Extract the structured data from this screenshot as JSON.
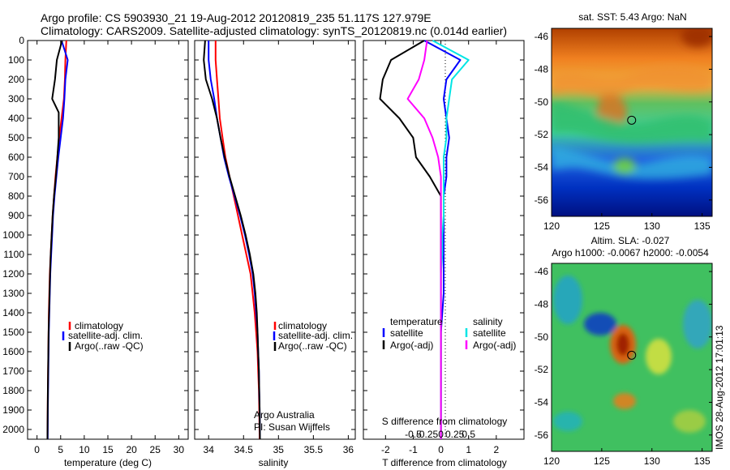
{
  "header": {
    "line1": "Argo profile: CS 5903930_21 19-Aug-2012 20120819_235 51.117S 127.979E",
    "line2": "Climatology: CARS2009. Satellite-adjusted climatology: synTS_20120819.nc (0.014d earlier)"
  },
  "colors": {
    "climatology": "#ff0000",
    "satellite": "#0000ff",
    "argo": "#000000",
    "sal_satellite": "#00e5e5",
    "sal_argo": "#ff00ff"
  },
  "legends": {
    "clim": "climatology",
    "sat": "satellite-adj. clim.",
    "argo": "Argo(..raw -QC)",
    "temperature": "temperature",
    "salinity": "salinity",
    "satellite": "satellite",
    "argo_adj": "Argo(-adj)"
  },
  "annotations": {
    "argo_australia": "Argo Australia",
    "pi": "PI: Susan Wijffels",
    "s_diff": "S difference from climatology",
    "credit": "IMOS 28-Aug-2012 17:01:13"
  },
  "map_sst": {
    "title": "sat. SST: 5.43 Argo: NaN"
  },
  "map_sla": {
    "title1": "Altim. SLA: -0.027",
    "title2": "Argo h1000: -0.0067 h2000: -0.0054"
  },
  "chart_data": [
    {
      "type": "line",
      "title": "",
      "xlabel": "temperature (deg C)",
      "ylabel": "",
      "xlim": [
        -2,
        32
      ],
      "ylim": [
        2050,
        0
      ],
      "xticks": [
        "0",
        "5",
        "10",
        "15",
        "20",
        "25",
        "30"
      ],
      "xtick_values": [
        0,
        5,
        10,
        15,
        20,
        25,
        30
      ],
      "yticks": [
        "0",
        "100",
        "200",
        "300",
        "400",
        "500",
        "600",
        "700",
        "800",
        "900",
        "1000",
        "1100",
        "1200",
        "1300",
        "1400",
        "1500",
        "1600",
        "1700",
        "1800",
        "1900",
        "2000"
      ],
      "ytick_values": [
        0,
        100,
        200,
        300,
        400,
        500,
        600,
        700,
        800,
        900,
        1000,
        1100,
        1200,
        1300,
        1400,
        1500,
        1600,
        1700,
        1800,
        1900,
        2000
      ],
      "series": [
        {
          "name": "climatology",
          "color": "#ff0000",
          "x": [
            6.2,
            6.0,
            5.9,
            5.7,
            5.2,
            4.7,
            4.3,
            3.9,
            3.6,
            3.3,
            3.1,
            2.9,
            2.7,
            2.6,
            2.5,
            2.45,
            2.4,
            2.35,
            2.3,
            2.25,
            2.2
          ],
          "y": [
            0,
            100,
            200,
            300,
            400,
            500,
            600,
            700,
            800,
            900,
            1000,
            1100,
            1200,
            1300,
            1400,
            1500,
            1600,
            1700,
            1800,
            1900,
            2050
          ]
        },
        {
          "name": "satellite-adj. clim.",
          "color": "#0000ff",
          "x": [
            5.2,
            6.5,
            6.0,
            5.8,
            5.5,
            5.0,
            4.5,
            4.1,
            3.7,
            3.4,
            3.2,
            3.0,
            2.8,
            2.7,
            2.6,
            2.5,
            2.45,
            2.4,
            2.35,
            2.3,
            2.25
          ],
          "y": [
            0,
            100,
            200,
            300,
            400,
            500,
            600,
            700,
            800,
            900,
            1000,
            1100,
            1200,
            1300,
            1400,
            1500,
            1600,
            1700,
            1800,
            1900,
            2050
          ]
        },
        {
          "name": "Argo(..raw -QC)",
          "color": "#000000",
          "x": [
            5.3,
            4.2,
            3.8,
            3.2,
            4.6,
            4.6,
            4.3,
            4.0,
            3.6,
            3.3,
            3.1,
            2.9,
            2.75,
            2.65,
            2.55,
            2.45,
            2.4,
            2.35,
            2.3,
            2.25,
            2.2
          ],
          "y": [
            0,
            100,
            200,
            300,
            370,
            500,
            600,
            700,
            800,
            900,
            1000,
            1100,
            1200,
            1300,
            1400,
            1500,
            1600,
            1700,
            1800,
            1900,
            2050
          ]
        }
      ]
    },
    {
      "type": "line",
      "title": "",
      "xlabel": "salinity",
      "ylabel": "",
      "xlim": [
        33.8,
        36.1
      ],
      "ylim": [
        2050,
        0
      ],
      "xticks": [
        "34",
        "34.5",
        "35",
        "35.5",
        "36"
      ],
      "xtick_values": [
        34,
        34.5,
        35,
        35.5,
        36
      ],
      "series": [
        {
          "name": "climatology",
          "color": "#ff0000",
          "x": [
            34.1,
            34.1,
            34.12,
            34.14,
            34.16,
            34.2,
            34.24,
            34.3,
            34.36,
            34.42,
            34.48,
            34.54,
            34.6,
            34.63,
            34.66,
            34.68,
            34.7,
            34.71,
            34.72,
            34.725,
            34.73
          ],
          "y": [
            0,
            100,
            200,
            300,
            400,
            500,
            600,
            700,
            800,
            900,
            1000,
            1100,
            1200,
            1300,
            1400,
            1500,
            1600,
            1700,
            1800,
            1900,
            2050
          ]
        },
        {
          "name": "satellite-adj. clim.",
          "color": "#0000ff",
          "x": [
            34.0,
            34.0,
            34.03,
            34.08,
            34.12,
            34.17,
            34.22,
            34.29,
            34.37,
            34.45,
            34.52,
            34.58,
            34.63,
            34.66,
            34.68,
            34.7,
            34.71,
            34.72,
            34.725,
            34.73,
            34.735
          ],
          "y": [
            0,
            100,
            200,
            300,
            400,
            500,
            600,
            700,
            800,
            900,
            1000,
            1100,
            1200,
            1300,
            1400,
            1500,
            1600,
            1700,
            1800,
            1900,
            2050
          ]
        },
        {
          "name": "Argo(..raw -QC)",
          "color": "#000000",
          "x": [
            33.95,
            33.93,
            33.96,
            34.05,
            34.12,
            34.17,
            34.23,
            34.3,
            34.38,
            34.46,
            34.53,
            34.59,
            34.64,
            34.67,
            34.69,
            34.7,
            34.71,
            34.72,
            34.725,
            34.73,
            34.735
          ],
          "y": [
            0,
            100,
            200,
            300,
            400,
            500,
            600,
            700,
            800,
            900,
            1000,
            1100,
            1200,
            1300,
            1400,
            1500,
            1600,
            1700,
            1800,
            1900,
            2050
          ]
        }
      ]
    },
    {
      "type": "line",
      "title": "",
      "xlabel": "T difference from climatology",
      "ylabel": "",
      "xlim": [
        -2.8,
        3.0
      ],
      "ylim": [
        2050,
        0
      ],
      "xticks": [
        "-2",
        "-1",
        "0",
        "1",
        "2"
      ],
      "xtick_values": [
        -2,
        -1,
        0,
        1,
        2
      ],
      "secondary_xticks": [
        "-0.5",
        "-0.25",
        "0",
        "0.25",
        "0.5"
      ],
      "series": [
        {
          "name": "temperature satellite",
          "color": "#0000ff",
          "x": [
            -0.6,
            0.7,
            0.2,
            0.1,
            0.2,
            0.3,
            0.2,
            0.2,
            0.1,
            0.1,
            0.1,
            0.1,
            0.1,
            0.1,
            0.05,
            0.0,
            0.0,
            0.0,
            0.0,
            0.0,
            0.0
          ],
          "y": [
            0,
            100,
            200,
            300,
            400,
            500,
            600,
            700,
            800,
            900,
            1000,
            1100,
            1200,
            1300,
            1400,
            1500,
            1600,
            1700,
            1800,
            1900,
            2050
          ]
        },
        {
          "name": "temperature Argo(-adj)",
          "color": "#000000",
          "x": [
            -0.6,
            -1.8,
            -2.1,
            -2.2,
            -1.5,
            -1.0,
            -0.9,
            -0.4,
            0.0,
            0.0,
            0.0,
            0.0,
            0.0,
            0.0,
            0.0,
            0.0,
            0.0,
            0.0,
            0.0,
            0.0,
            0.0
          ],
          "y": [
            0,
            100,
            200,
            300,
            400,
            500,
            600,
            700,
            800,
            900,
            1000,
            1100,
            1200,
            1300,
            1400,
            1500,
            1600,
            1700,
            1800,
            1900,
            2050
          ]
        },
        {
          "name": "salinity satellite",
          "color": "#00e5e5",
          "x": [
            -0.3,
            1.0,
            0.4,
            0.3,
            0.2,
            0.2,
            0.1,
            0.1,
            0.1,
            0.1,
            0.05,
            0.05,
            0.0,
            0.0,
            0.0,
            0.0,
            0.0,
            0.0,
            0.0,
            0.0,
            0.0
          ],
          "y": [
            0,
            100,
            200,
            300,
            400,
            500,
            600,
            700,
            800,
            900,
            1000,
            1100,
            1200,
            1300,
            1400,
            1500,
            1600,
            1700,
            1800,
            1900,
            2050
          ]
        },
        {
          "name": "salinity Argo(-adj)",
          "color": "#ff00ff",
          "x": [
            -0.5,
            -0.6,
            -0.8,
            -1.2,
            -0.6,
            -0.3,
            -0.1,
            0.0,
            0.0,
            0.0,
            0.0,
            0.0,
            0.0,
            0.0,
            0.0,
            0.0,
            0.0,
            0.0,
            0.0,
            0.0,
            0.0
          ],
          "y": [
            0,
            100,
            200,
            300,
            400,
            500,
            600,
            700,
            800,
            900,
            1000,
            1100,
            1200,
            1300,
            1400,
            1500,
            1600,
            1700,
            1800,
            1900,
            2050
          ]
        }
      ]
    },
    {
      "type": "heatmap",
      "title": "sat. SST: 5.43 Argo: NaN",
      "xlim": [
        120,
        136
      ],
      "ylim": [
        -57,
        -45.5
      ],
      "xticks": [
        "120",
        "125",
        "130",
        "135"
      ],
      "xtick_values": [
        120,
        125,
        130,
        135
      ],
      "yticks": [
        "-46",
        "-48",
        "-50",
        "-52",
        "-54",
        "-56"
      ],
      "ytick_values": [
        -46,
        -48,
        -50,
        -52,
        -54,
        -56
      ],
      "marker": {
        "lon": 127.979,
        "lat": -51.117
      }
    },
    {
      "type": "heatmap",
      "title": "Altim. SLA: -0.027",
      "xlim": [
        120,
        136
      ],
      "ylim": [
        -57,
        -45.5
      ],
      "xticks": [
        "120",
        "125",
        "130",
        "135"
      ],
      "xtick_values": [
        120,
        125,
        130,
        135
      ],
      "yticks": [
        "-46",
        "-48",
        "-50",
        "-52",
        "-54",
        "-56"
      ],
      "ytick_values": [
        -46,
        -48,
        -50,
        -52,
        -54,
        -56
      ],
      "marker": {
        "lon": 127.979,
        "lat": -51.117
      }
    }
  ]
}
